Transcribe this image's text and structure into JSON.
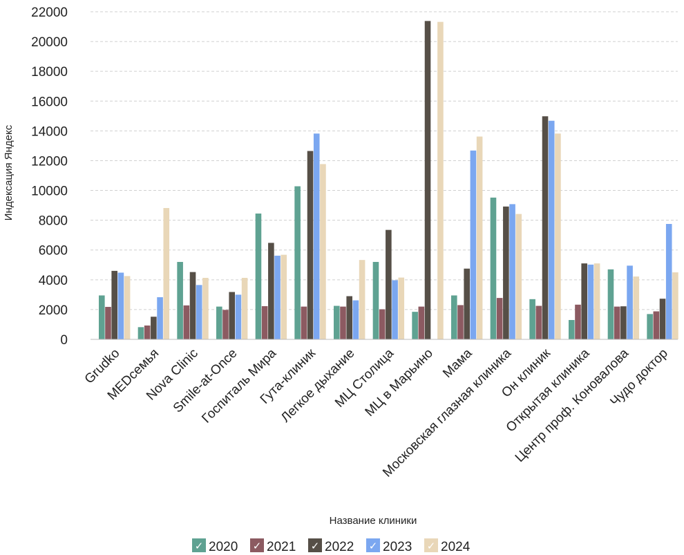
{
  "chart_data": {
    "type": "bar",
    "title": "",
    "xlabel": "Название клиники",
    "ylabel": "Индексация Яндекс",
    "ylim": [
      0,
      22000
    ],
    "yticks": [
      0,
      2000,
      4000,
      6000,
      8000,
      10000,
      12000,
      14000,
      16000,
      18000,
      20000,
      22000
    ],
    "grid": true,
    "legend_position": "bottom",
    "categories": [
      "Grudko",
      "MEDсемья",
      "Nova Clinic",
      "Smile-at-Once",
      "Госпиталь Мира",
      "Гута-клиник",
      "Легкое дыхание",
      "МЦ Столица",
      "МЦ в Марьино",
      "Мама",
      "Московская глазная клиника",
      "Он клиник",
      "Открытая клиника",
      "Центр проф. Коновалова",
      "Чудо доктор"
    ],
    "series": [
      {
        "name": "2020",
        "color": "#5fa292",
        "values": [
          2950,
          820,
          5200,
          2200,
          8450,
          10280,
          2250,
          5200,
          1850,
          2950,
          9520,
          2700,
          1300,
          4700,
          1700
        ]
      },
      {
        "name": "2021",
        "color": "#8c5a61",
        "values": [
          2180,
          930,
          2280,
          1980,
          2230,
          2200,
          2200,
          2020,
          2200,
          2300,
          2780,
          2250,
          2330,
          2200,
          1880
        ]
      },
      {
        "name": "2022",
        "color": "#564f47",
        "values": [
          4600,
          1520,
          4520,
          3180,
          6480,
          12650,
          2900,
          7350,
          21380,
          4750,
          8920,
          14980,
          5100,
          2220,
          2730
        ]
      },
      {
        "name": "2023",
        "color": "#7ba7f0",
        "values": [
          4480,
          2830,
          3650,
          3000,
          5620,
          13820,
          2620,
          3970,
          0,
          12680,
          9080,
          14680,
          5020,
          4950,
          7750
        ]
      },
      {
        "name": "2024",
        "color": "#e9d7b8",
        "values": [
          4250,
          8820,
          4130,
          4130,
          5680,
          11770,
          5330,
          4150,
          21320,
          13620,
          8420,
          13820,
          5100,
          4220,
          4500
        ]
      }
    ],
    "legend_check": "✓"
  }
}
